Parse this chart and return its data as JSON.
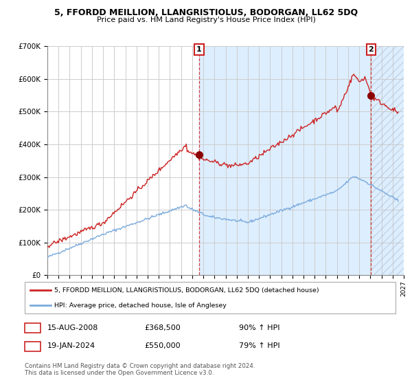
{
  "title": "5, FFORDD MEILLION, LLANGRISTIOLUS, BODORGAN, LL62 5DQ",
  "subtitle": "Price paid vs. HM Land Registry's House Price Index (HPI)",
  "hpi_color": "#7aaadd",
  "price_color": "#cc2222",
  "marker_color": "#8b0000",
  "ylim": [
    0,
    700000
  ],
  "yticks": [
    0,
    100000,
    200000,
    300000,
    400000,
    500000,
    600000,
    700000
  ],
  "ytick_labels": [
    "£0",
    "£100K",
    "£200K",
    "£300K",
    "£400K",
    "£500K",
    "£600K",
    "£700K"
  ],
  "sale1_date": 2008.62,
  "sale1_price": 368500,
  "sale2_date": 2024.05,
  "sale2_price": 550000,
  "legend_line1": "5, FFORDD MEILLION, LLANGRISTIOLUS, BODORGAN, LL62 5DQ (detached house)",
  "legend_line2": "HPI: Average price, detached house, Isle of Anglesey",
  "table_row1": [
    "1",
    "15-AUG-2008",
    "£368,500",
    "90% ↑ HPI"
  ],
  "table_row2": [
    "2",
    "19-JAN-2024",
    "£550,000",
    "79% ↑ HPI"
  ],
  "footer": "Contains HM Land Registry data © Crown copyright and database right 2024.\nThis data is licensed under the Open Government Licence v3.0.",
  "xmin": 1995.0,
  "xmax": 2027.0
}
